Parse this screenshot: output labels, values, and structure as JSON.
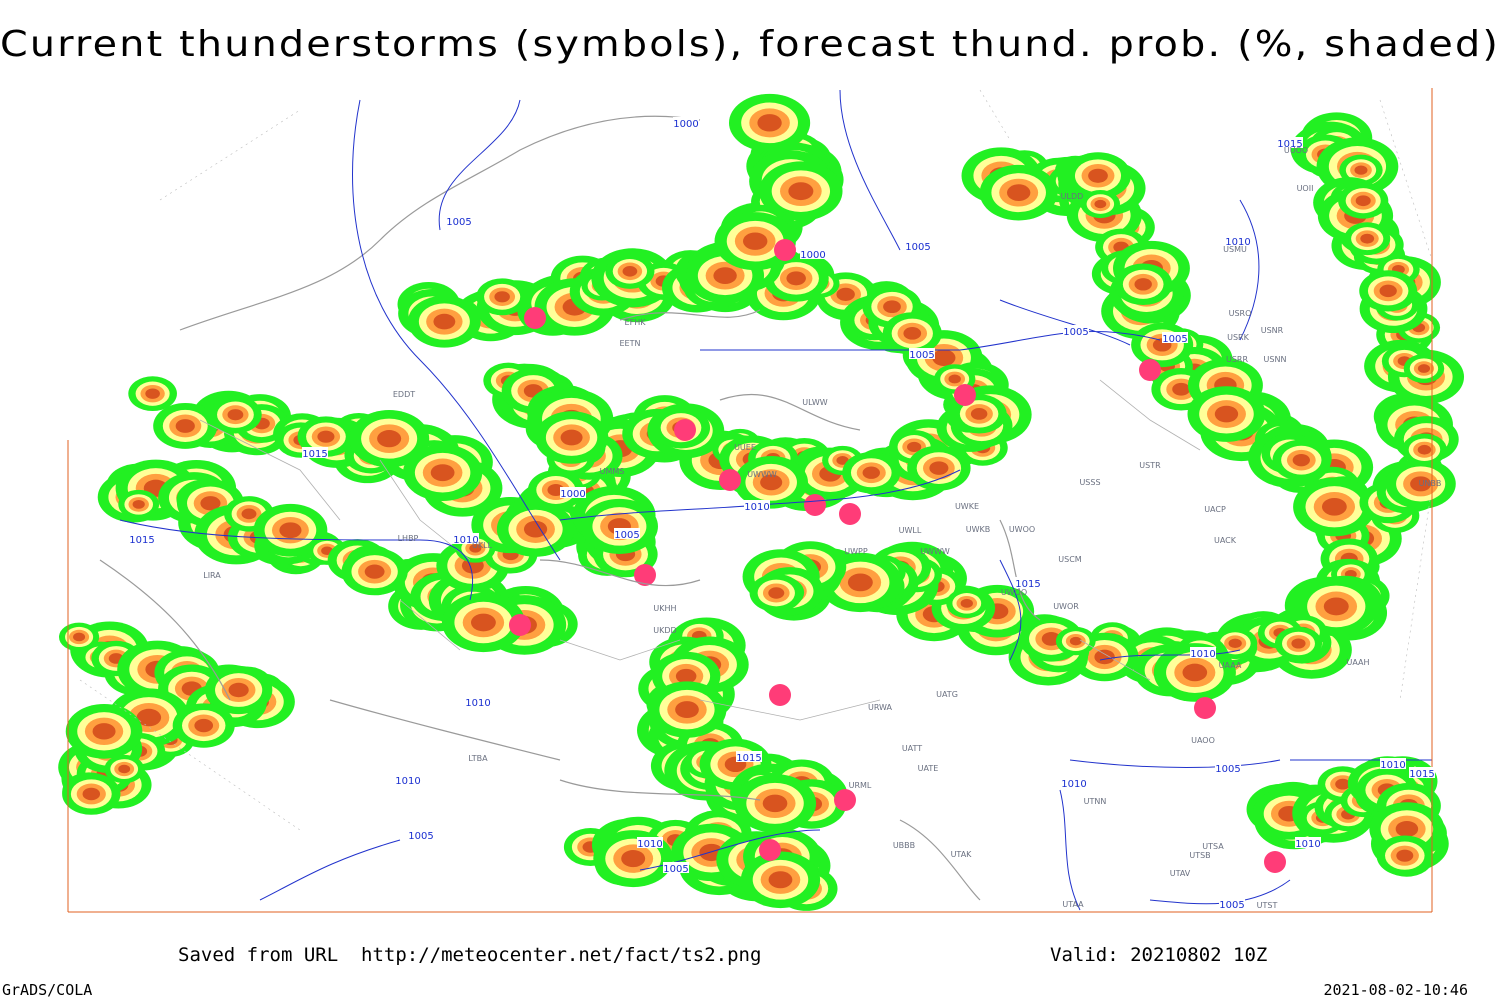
{
  "title": "Current thunderstorms (symbols), forecast thund. prob. (%, shaded)",
  "footer": {
    "source": "Saved from URL  http://meteocenter.net/fact/ts2.png",
    "valid": "Valid: 20210802 10Z",
    "software": "GrADS/COLA",
    "timestamp": "2021-08-02-10:46"
  },
  "isobar_labels": [
    "1000",
    "1000",
    "1000",
    "1005",
    "1005",
    "1005",
    "1005",
    "1005",
    "1005",
    "1005",
    "1005",
    "1005",
    "1005",
    "1010",
    "1010",
    "1010",
    "1010",
    "1010",
    "1010",
    "1010",
    "1010",
    "1010",
    "1010",
    "1015",
    "1015",
    "1015",
    "1015",
    "1015",
    "1015"
  ],
  "station_labels": [
    "ULDD",
    "USMU",
    "USRO",
    "USRK",
    "USNR",
    "USRR",
    "USNN",
    "UUOO",
    "UOII",
    "EFHK",
    "EETN",
    "ULWW",
    "UUEE",
    "UWWW",
    "USTR",
    "USSS",
    "UWKE",
    "UWKB",
    "UWOO",
    "UWLL",
    "UWPP",
    "UWWW",
    "USCM",
    "UWOO",
    "UWOR",
    "UACK",
    "UACP",
    "UMMS",
    "UKLL",
    "LHBP",
    "LIRA",
    "UKHH",
    "UKDD",
    "URWA",
    "UATG",
    "UATE",
    "UATT",
    "URML",
    "UTNN",
    "UBBB",
    "UTAK",
    "UTSA",
    "UTSB",
    "UTAV",
    "UTAA",
    "UTST",
    "UAAH",
    "UAOO",
    "UAAA",
    "UNBB",
    "LTBA",
    "EDDT"
  ]
}
